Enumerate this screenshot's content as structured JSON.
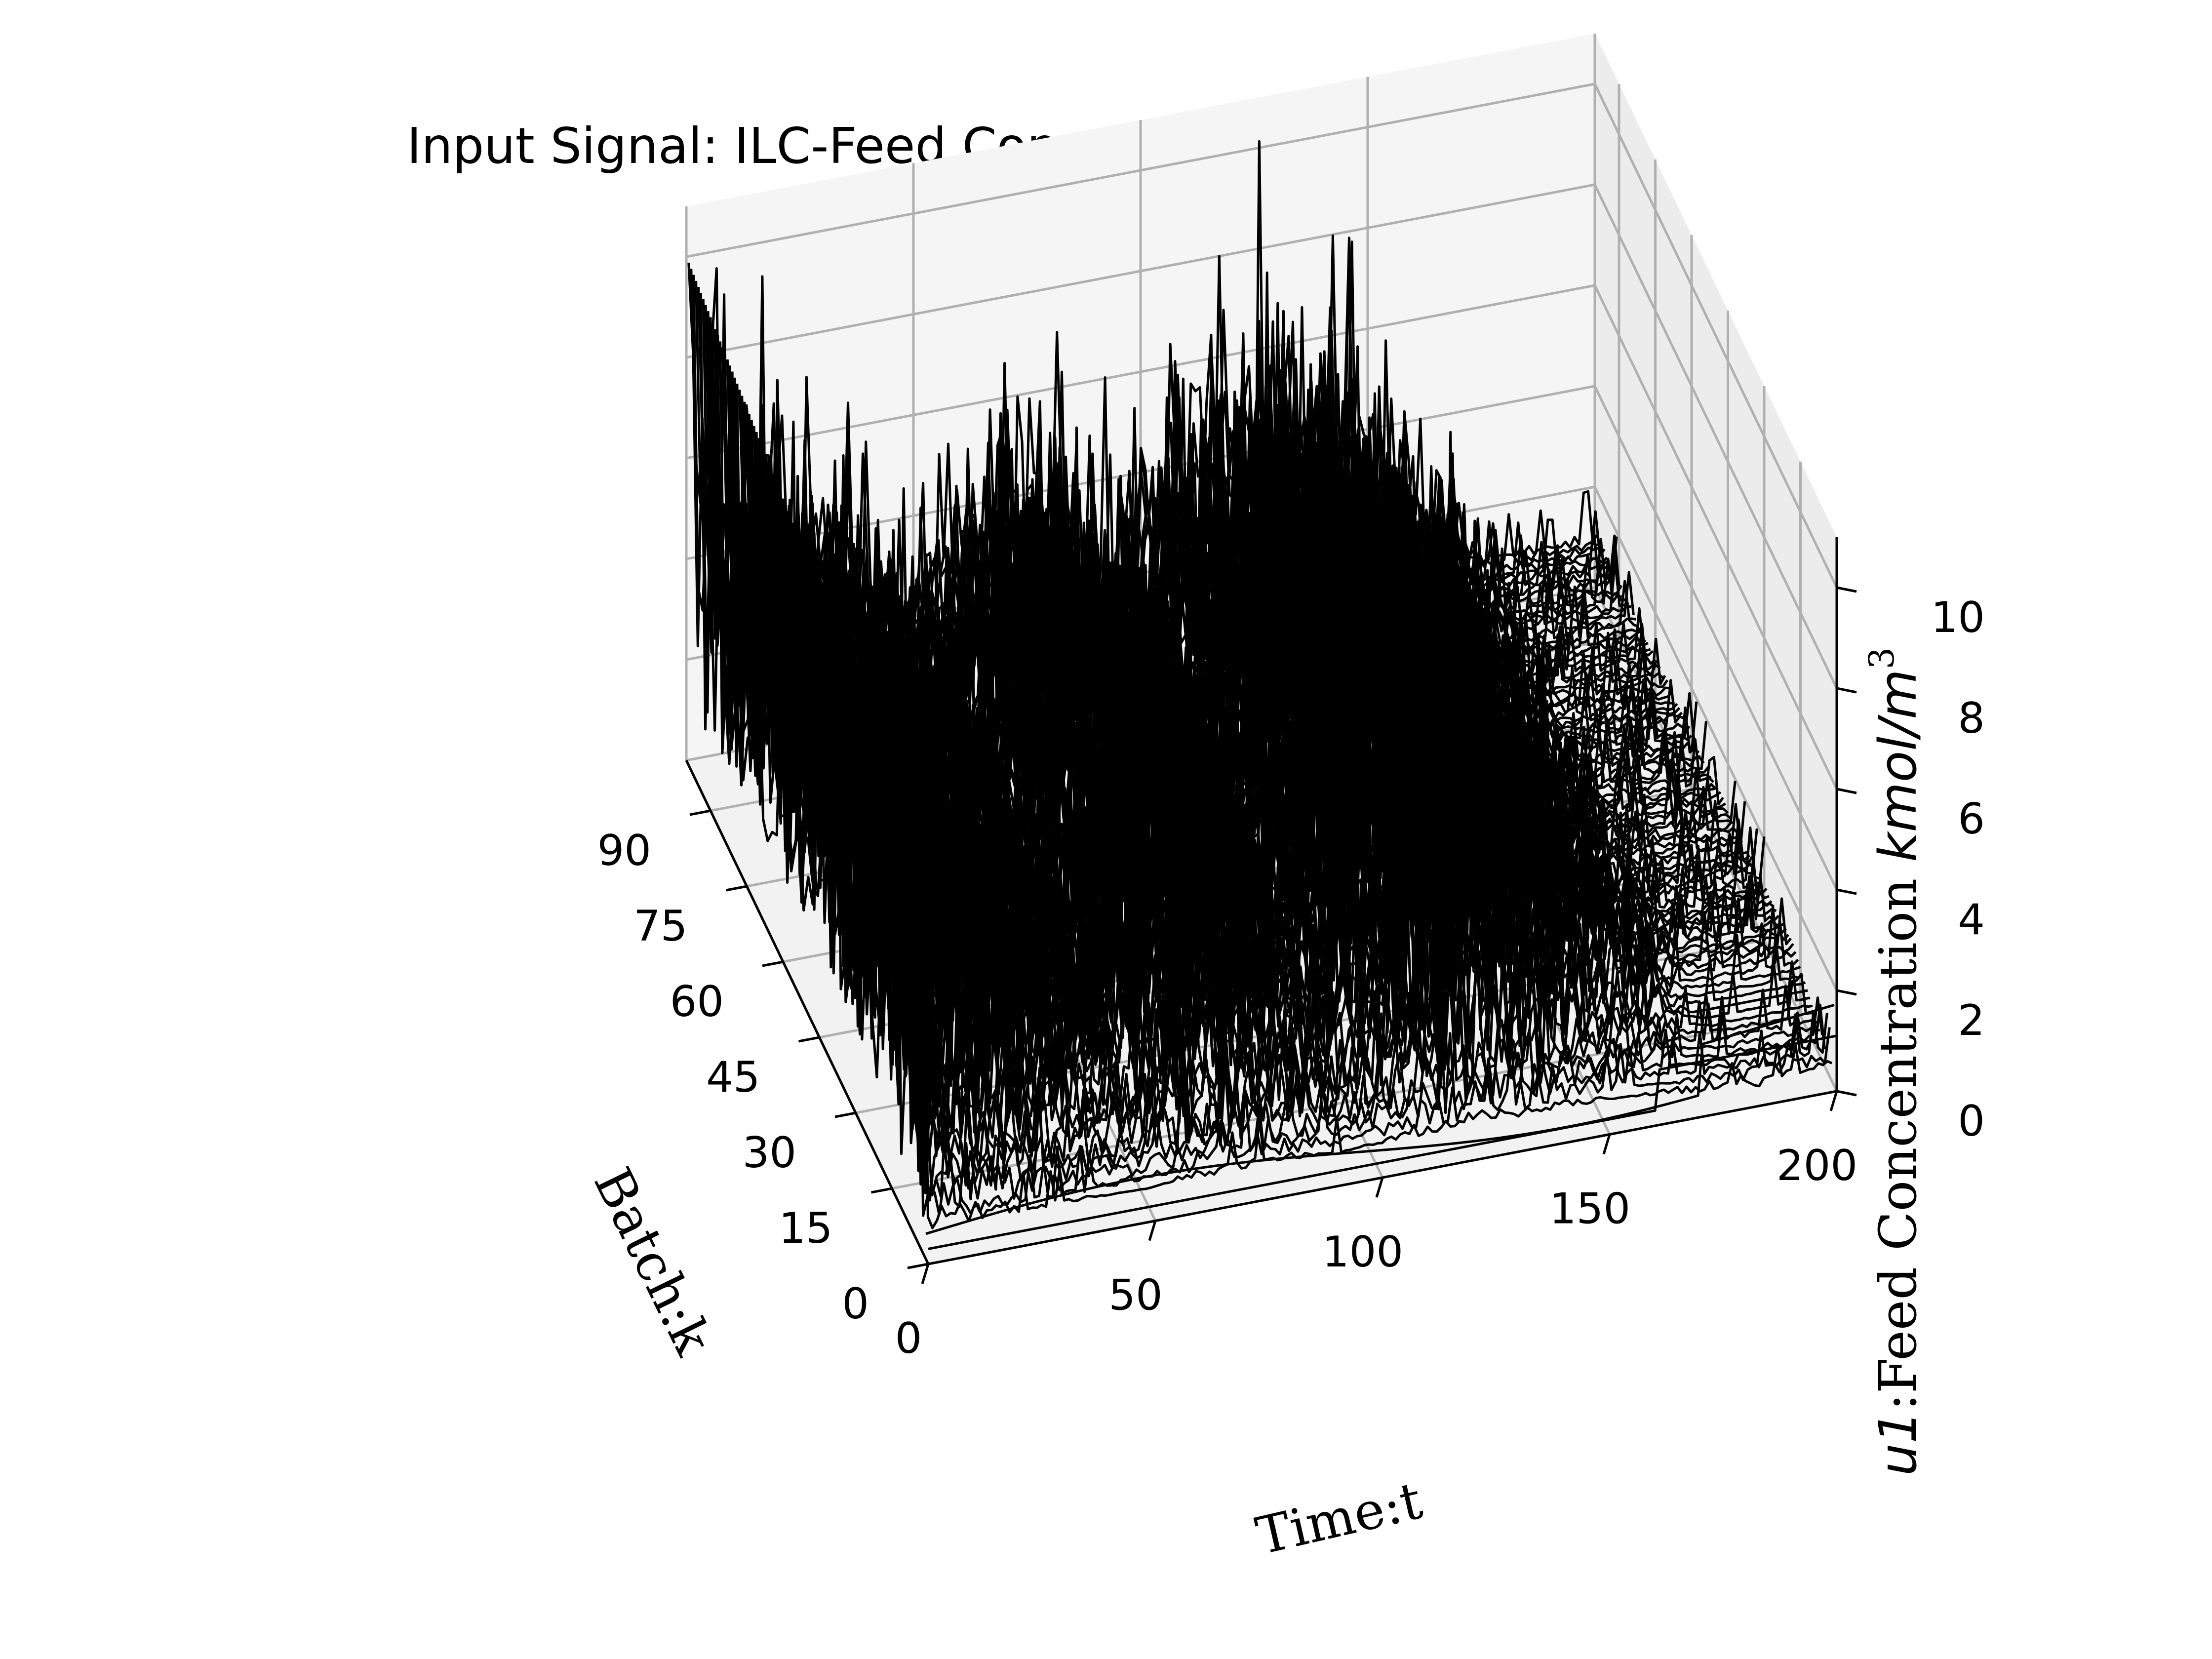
{
  "chart_data": {
    "type": "surface-lines-3d",
    "title": "Input Signal: ILC-Feed Concentration",
    "xlabel": "Time:t",
    "ylabel": "Batch:k",
    "zlabel_prefix": "u1",
    "zlabel_text": ":Feed Concentration ",
    "zlabel_unit": "kmol/m",
    "zlabel_sup": "3",
    "x_ticks": [
      "0",
      "50",
      "100",
      "150",
      "200"
    ],
    "y_ticks": [
      "0",
      "15",
      "30",
      "45",
      "60",
      "75",
      "90"
    ],
    "z_ticks": [
      "0",
      "2",
      "4",
      "6",
      "8",
      "10"
    ],
    "xlim": [
      0,
      200
    ],
    "ylim": [
      0,
      100
    ],
    "zlim": [
      0,
      11
    ],
    "batches": 100,
    "time_steps": 200,
    "line_color": "#000000",
    "grid": true,
    "pane_color": "#f2f2f2"
  }
}
